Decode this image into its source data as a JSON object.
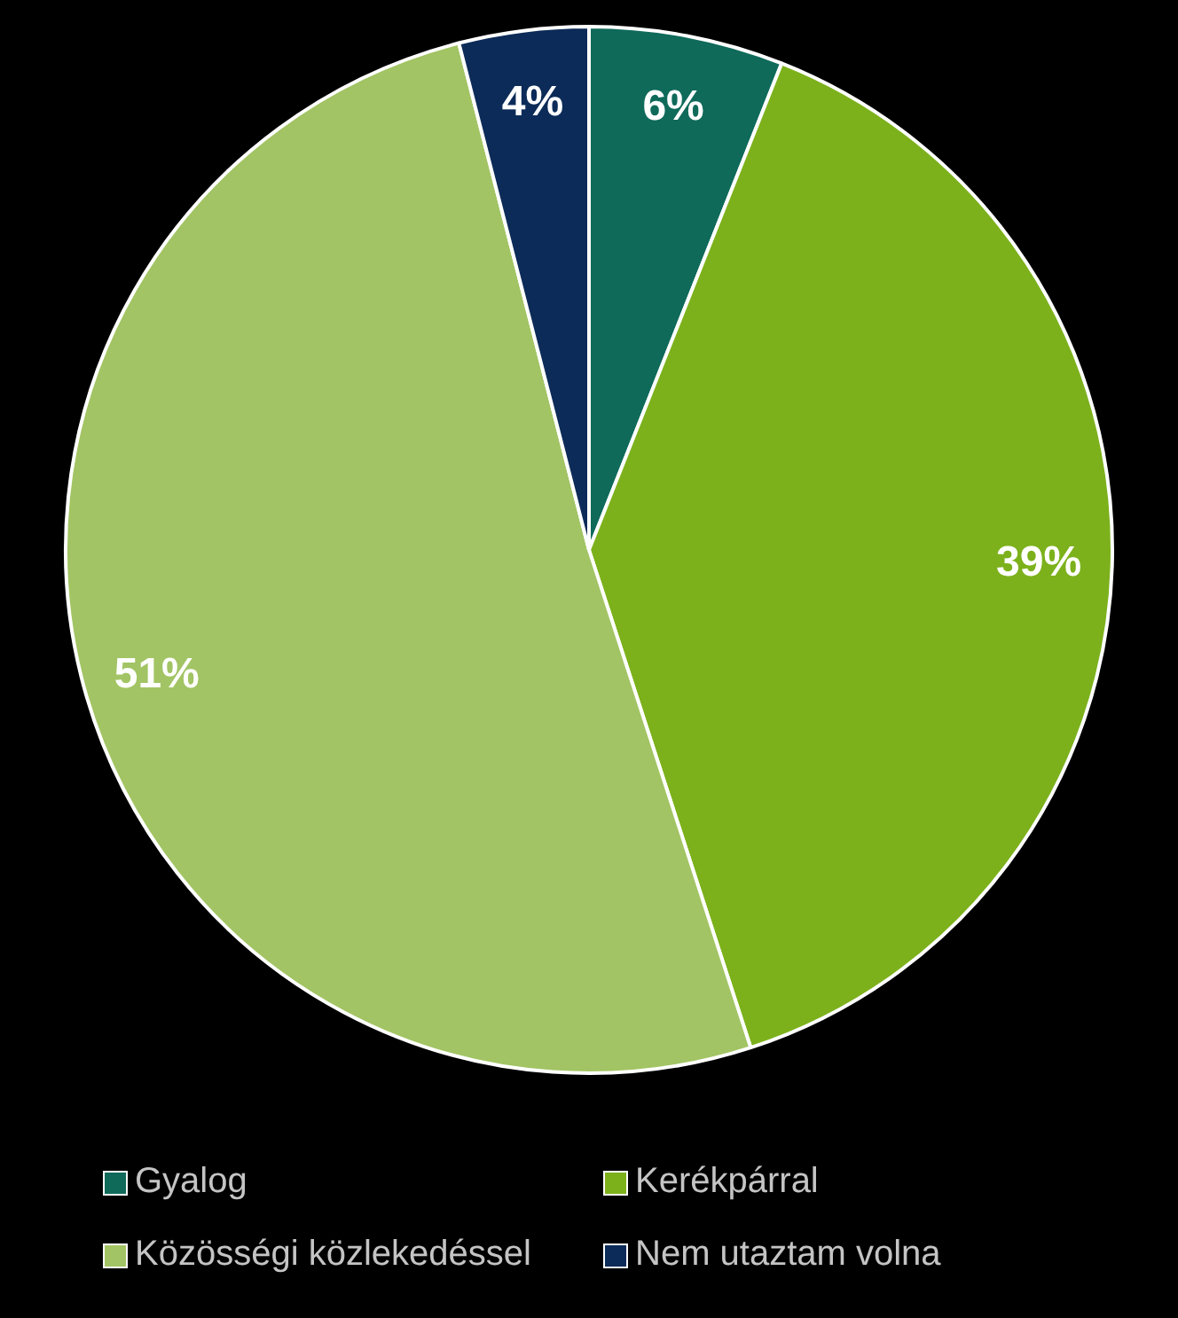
{
  "chart_data": {
    "type": "pie",
    "categories": [
      "Gyalog",
      "Kerékpárral",
      "Közösségi közlekedéssel",
      "Nem utaztam volna"
    ],
    "values": [
      6,
      39,
      51,
      4
    ],
    "colors": [
      "#0f6a5a",
      "#7cb11c",
      "#a2c464",
      "#0c2b58"
    ],
    "value_labels": [
      "6%",
      "39%",
      "51%",
      "4%"
    ],
    "legend": "bottom"
  }
}
